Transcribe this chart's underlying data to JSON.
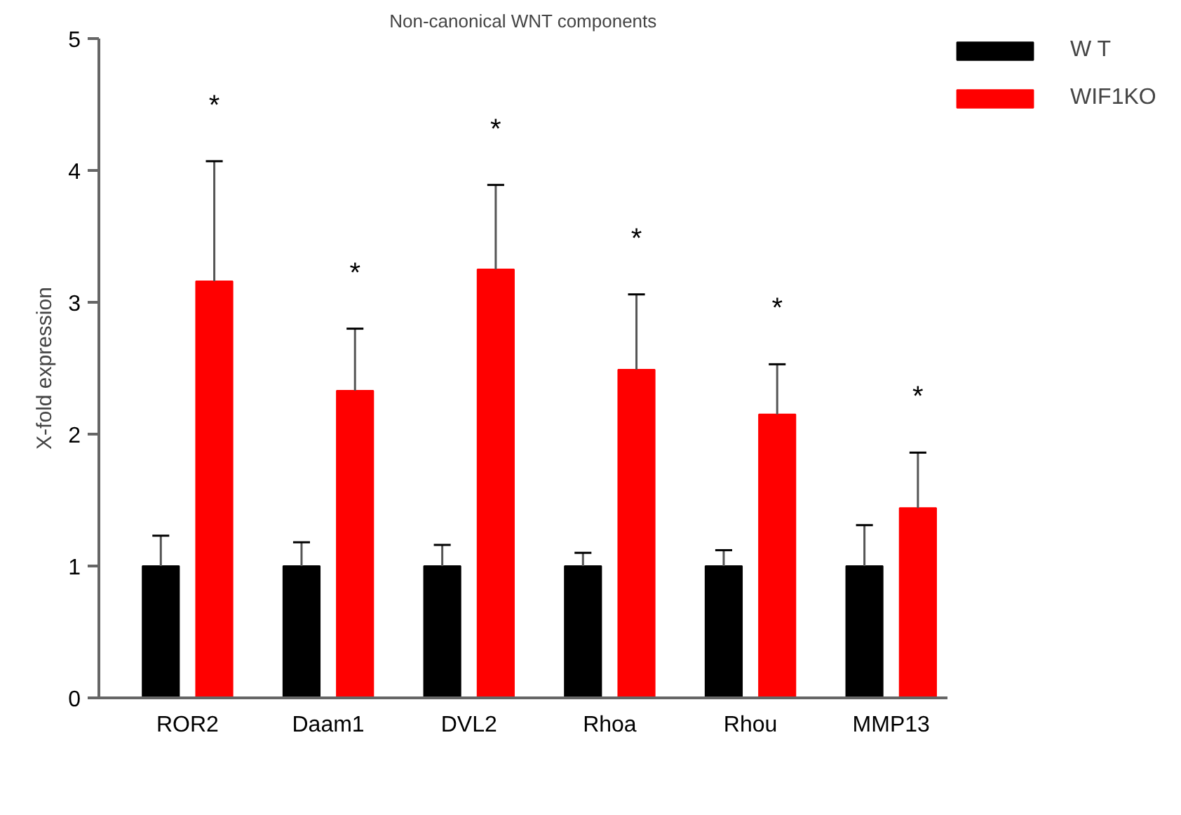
{
  "chart_data": {
    "type": "bar",
    "title": "Non-canonical WNT components",
    "ylabel": "X-fold expression",
    "categories": [
      "ROR2",
      "Daam1",
      "DVL2",
      "Rhoa",
      "Rhou",
      "MMP13"
    ],
    "series": [
      {
        "name": "W T",
        "color": "#000000",
        "values": [
          1,
          1,
          1,
          1,
          1,
          1
        ],
        "errors": [
          [
            1,
            1.23
          ],
          [
            1,
            1.18
          ],
          [
            1,
            1.16
          ],
          [
            1,
            1.1
          ],
          [
            1,
            1.12
          ],
          [
            1,
            1.31
          ]
        ]
      },
      {
        "name": "WIF1KO",
        "color": "#ff0000",
        "values": [
          3.16,
          2.33,
          3.25,
          2.49,
          2.15,
          1.44
        ],
        "errors": [
          [
            3.16,
            4.07
          ],
          [
            2.33,
            2.8
          ],
          [
            3.25,
            3.89
          ],
          [
            2.49,
            3.06
          ],
          [
            2.15,
            2.53
          ],
          [
            1.44,
            1.86
          ]
        ]
      }
    ],
    "ylim": [
      0,
      5
    ],
    "yticks": [
      0,
      1,
      2,
      3,
      4,
      5
    ],
    "grid": false,
    "legend": "top right",
    "annotations": [
      "*",
      "*",
      "*",
      "*",
      "*",
      "*"
    ]
  }
}
